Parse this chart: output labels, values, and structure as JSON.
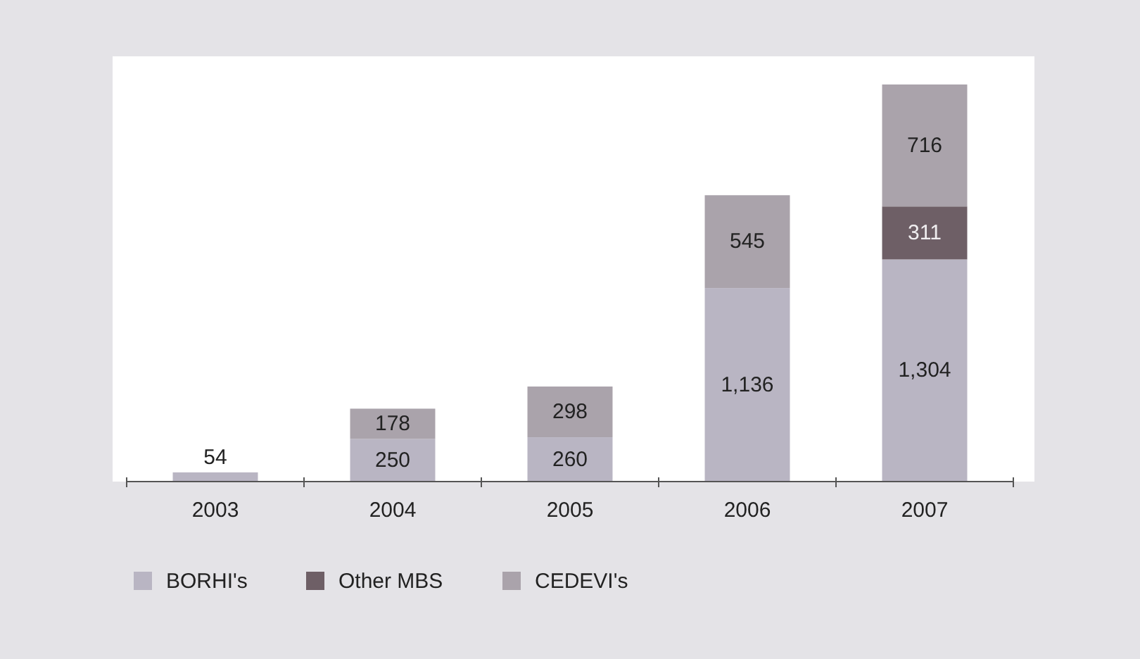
{
  "chart_data": {
    "type": "bar",
    "stacked": true,
    "legend": "bottom left",
    "categories": [
      "2003",
      "2004",
      "2005",
      "2006",
      "2007"
    ],
    "series": [
      {
        "name": "BORHI's",
        "color": "#b9b5c3",
        "values": [
          54,
          250,
          260,
          1136,
          1304
        ],
        "value_labels": [
          "54",
          "250",
          "260",
          "1,136",
          "1,304"
        ]
      },
      {
        "name": "Other MBS",
        "color": "#6e5f66",
        "values": [
          null,
          null,
          null,
          null,
          311
        ],
        "value_labels": [
          null,
          null,
          null,
          null,
          "311"
        ]
      },
      {
        "name": "CEDEVI's",
        "color": "#aaa3ab",
        "values": [
          null,
          178,
          298,
          545,
          716
        ],
        "value_labels": [
          null,
          "178",
          "298",
          "545",
          "716"
        ]
      }
    ]
  }
}
